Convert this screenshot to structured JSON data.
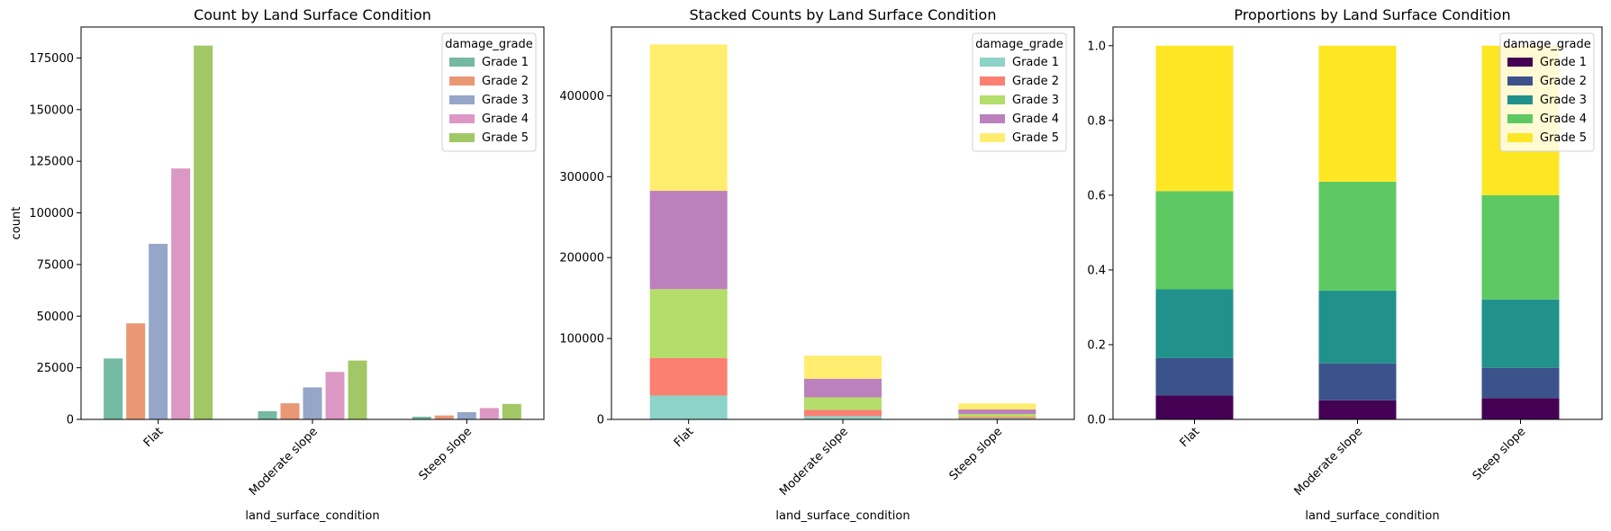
{
  "chart_data": [
    {
      "type": "bar",
      "mode": "grouped",
      "title": "Count by Land Surface Condition",
      "xlabel": "land_surface_condition",
      "ylabel": "count",
      "categories": [
        "Flat",
        "Moderate slope",
        "Steep slope"
      ],
      "ylim": [
        0,
        190000
      ],
      "yticks": [
        0,
        25000,
        50000,
        75000,
        100000,
        125000,
        150000,
        175000
      ],
      "yticklabels": [
        "0",
        "25000",
        "50000",
        "75000",
        "100000",
        "125000",
        "150000",
        "175000"
      ],
      "legend": {
        "title": "damage_grade",
        "position": "top-right"
      },
      "series": [
        {
          "name": "Grade 1",
          "color": "#74b9a1",
          "values": [
            29500,
            4000,
            1300
          ]
        },
        {
          "name": "Grade 2",
          "color": "#e99775",
          "values": [
            46500,
            7800,
            1900
          ]
        },
        {
          "name": "Grade 3",
          "color": "#96a6c8",
          "values": [
            85000,
            15500,
            3500
          ]
        },
        {
          "name": "Grade 4",
          "color": "#dc98c4",
          "values": [
            121500,
            23000,
            5500
          ]
        },
        {
          "name": "Grade 5",
          "color": "#a2c865",
          "values": [
            181000,
            28500,
            7500
          ]
        }
      ]
    },
    {
      "type": "bar",
      "mode": "stacked",
      "title": "Stacked Counts by Land Surface Condition",
      "xlabel": "land_surface_condition",
      "ylabel": "",
      "categories": [
        "Flat",
        "Moderate slope",
        "Steep slope"
      ],
      "ylim": [
        0,
        485000
      ],
      "yticks": [
        0,
        100000,
        200000,
        300000,
        400000
      ],
      "yticklabels": [
        "0",
        "100000",
        "200000",
        "300000",
        "400000"
      ],
      "legend": {
        "title": "damage_grade",
        "position": "top-right"
      },
      "series": [
        {
          "name": "Grade 1",
          "color": "#8dd3c7",
          "values": [
            29500,
            4000,
            1300
          ]
        },
        {
          "name": "Grade 2",
          "color": "#fb8072",
          "values": [
            46500,
            7800,
            1900
          ]
        },
        {
          "name": "Grade 3",
          "color": "#b3de69",
          "values": [
            85000,
            15500,
            3500
          ]
        },
        {
          "name": "Grade 4",
          "color": "#bc80bd",
          "values": [
            121500,
            23000,
            5500
          ]
        },
        {
          "name": "Grade 5",
          "color": "#ffed6f",
          "values": [
            181000,
            28500,
            7500
          ]
        }
      ]
    },
    {
      "type": "bar",
      "mode": "stacked",
      "title": "Proportions by Land Surface Condition",
      "xlabel": "land_surface_condition",
      "ylabel": "",
      "categories": [
        "Flat",
        "Moderate slope",
        "Steep slope"
      ],
      "ylim": [
        0,
        1.05
      ],
      "yticks": [
        0,
        0.2,
        0.4,
        0.6,
        0.8,
        1.0
      ],
      "yticklabels": [
        "0.0",
        "0.2",
        "0.4",
        "0.6",
        "0.8",
        "1.0"
      ],
      "legend": {
        "title": "damage_grade",
        "position": "top-right"
      },
      "series": [
        {
          "name": "Grade 1",
          "color": "#440154",
          "values": [
            0.064,
            0.051,
            0.057
          ]
        },
        {
          "name": "Grade 2",
          "color": "#3b528b",
          "values": [
            0.1,
            0.099,
            0.081
          ]
        },
        {
          "name": "Grade 3",
          "color": "#21918c",
          "values": [
            0.184,
            0.195,
            0.183
          ]
        },
        {
          "name": "Grade 4",
          "color": "#5ec962",
          "values": [
            0.263,
            0.291,
            0.279
          ]
        },
        {
          "name": "Grade 5",
          "color": "#fde725",
          "values": [
            0.389,
            0.364,
            0.4
          ]
        }
      ]
    }
  ]
}
